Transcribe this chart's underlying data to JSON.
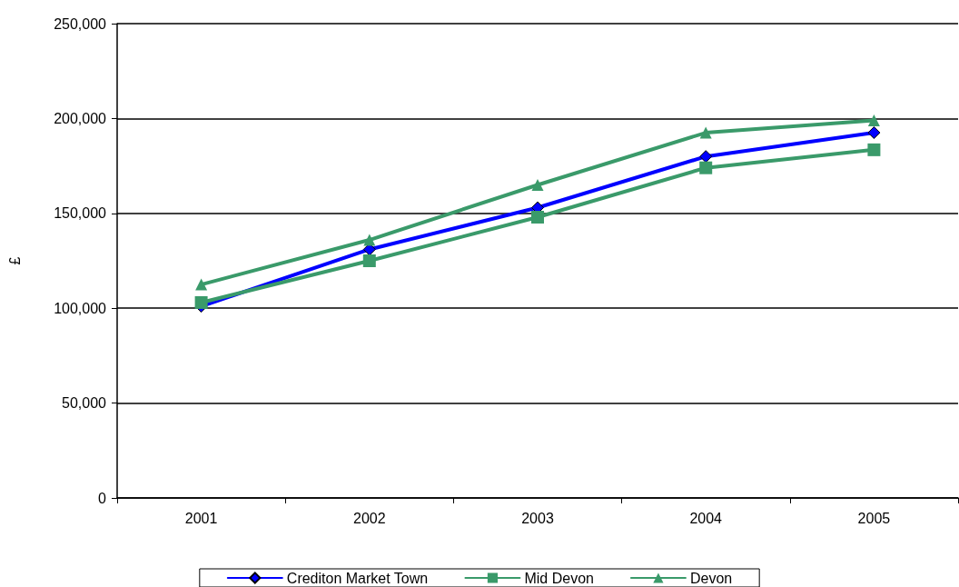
{
  "chart_data": {
    "type": "line",
    "ylabel": "£",
    "categories": [
      "2001",
      "2002",
      "2003",
      "2004",
      "2005"
    ],
    "series": [
      {
        "name": "Crediton Market Town",
        "color": "#0000ff",
        "marker": "diamond",
        "values": [
          101000,
          131000,
          153000,
          180000,
          192500
        ]
      },
      {
        "name": "Mid Devon",
        "color": "#3a9a6a",
        "marker": "square",
        "values": [
          103000,
          125000,
          148000,
          174000,
          183500
        ]
      },
      {
        "name": "Devon",
        "color": "#3a9a6a",
        "marker": "triangle",
        "values": [
          112500,
          136000,
          165000,
          192500,
          199000
        ]
      }
    ],
    "ylim": [
      0,
      250000
    ],
    "yticks": [
      {
        "value": 0,
        "label": "0"
      },
      {
        "value": 50000,
        "label": "50,000"
      },
      {
        "value": 100000,
        "label": "100,000"
      },
      {
        "value": 150000,
        "label": "150,000"
      },
      {
        "value": 200000,
        "label": "200,000"
      },
      {
        "value": 250000,
        "label": "250,000"
      }
    ],
    "grid": "y",
    "legend": "bottom",
    "line_style": "solid"
  }
}
